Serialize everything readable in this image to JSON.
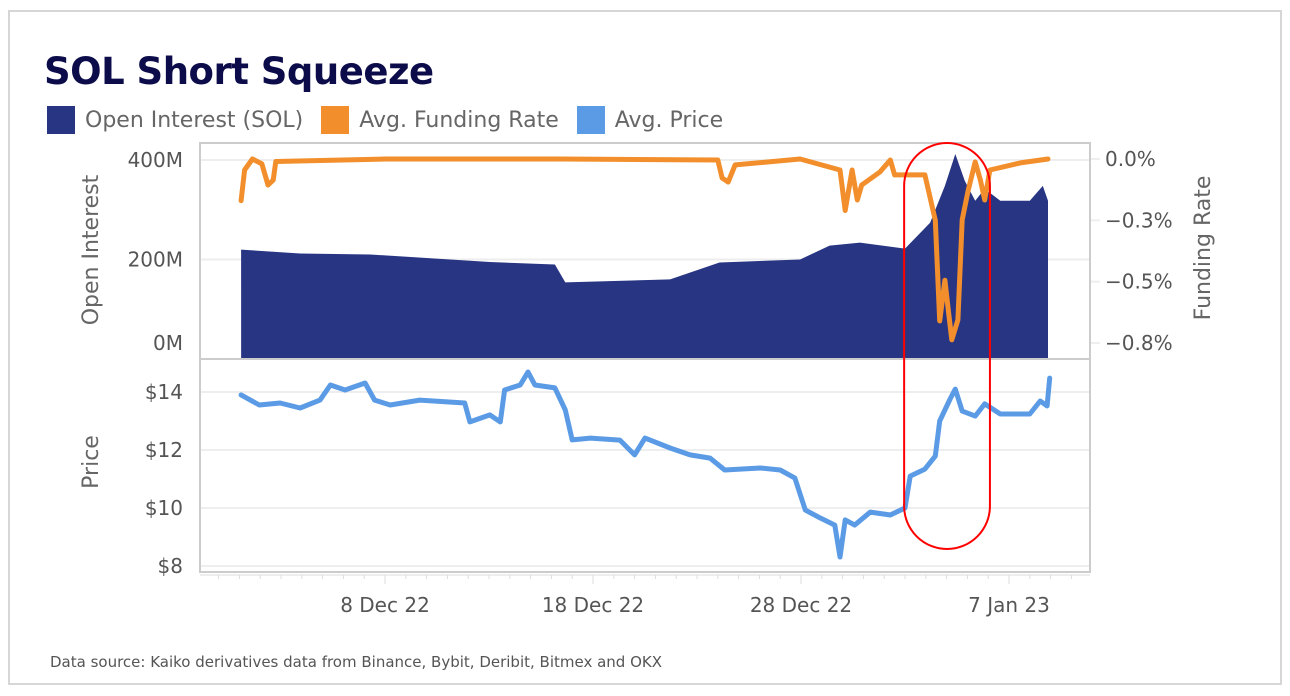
{
  "chart_data": [
    {
      "type": "area+line",
      "title": "SOL Short Squeeze",
      "legend": {
        "placement": "top-left",
        "entries": [
          {
            "name": "Open Interest (SOL)",
            "color": "#283583"
          },
          {
            "name": "Avg. Funding Rate",
            "color": "#f28f2c"
          },
          {
            "name": "Avg. Price",
            "color": "#5b9be6"
          }
        ]
      },
      "ylabel_left": "Open Interest",
      "ylabel_right": "Funding Rate",
      "ylim_left": [
        0,
        400
      ],
      "yticks_left": [
        {
          "value": 400,
          "label": "400M"
        },
        {
          "value": 200,
          "label": "200M"
        },
        {
          "value": 0,
          "label": "0M"
        }
      ],
      "ylim_right": [
        -0.75,
        0
      ],
      "yticks_right": [
        {
          "value": 0,
          "label": "0.0%"
        },
        {
          "value": -0.25,
          "label": "−0.3%"
        },
        {
          "value": -0.5,
          "label": "−0.5%"
        },
        {
          "value": -0.75,
          "label": "−0.8%"
        }
      ],
      "grid": true,
      "series": [
        {
          "name": "Open Interest (SOL)",
          "kind": "area",
          "axis": "left",
          "unit": "M",
          "points": [
            [
              "2022-12-01 02:00",
              220
            ],
            [
              "2022-12-03 22:00",
              212
            ],
            [
              "2022-12-07 07:00",
              210
            ],
            [
              "2022-12-13 01:00",
              195
            ],
            [
              "2022-12-16 04:00",
              190
            ],
            [
              "2022-12-16 16:00",
              154
            ],
            [
              "2022-12-21 17:00",
              160
            ],
            [
              "2022-12-24 02:00",
              194
            ],
            [
              "2022-12-27 23:00",
              200
            ],
            [
              "2022-12-29 09:00",
              228
            ],
            [
              "2022-12-30 20:00",
              234
            ],
            [
              "2023-01-02 00:00",
              222
            ],
            [
              "2023-01-03 05:00",
              274
            ],
            [
              "2023-01-03 22:00",
              348
            ],
            [
              "2023-01-04 10:00",
              412
            ],
            [
              "2023-01-04 21:00",
              358
            ],
            [
              "2023-01-05 09:00",
              318
            ],
            [
              "2023-01-05 20:00",
              342
            ],
            [
              "2023-01-06 14:00",
              318
            ],
            [
              "2023-01-08 00:00",
              318
            ],
            [
              "2023-01-08 15:00",
              348
            ],
            [
              "2023-01-08 21:00",
              318
            ]
          ]
        },
        {
          "name": "Avg. Funding Rate",
          "kind": "line",
          "axis": "right",
          "unit": "%",
          "points": [
            [
              "2022-12-01 02:00",
              -0.17
            ],
            [
              "2022-12-01 06:00",
              -0.045
            ],
            [
              "2022-12-01 15:00",
              0.0
            ],
            [
              "2022-12-02 02:00",
              -0.02
            ],
            [
              "2022-12-02 09:00",
              -0.106
            ],
            [
              "2022-12-02 15:00",
              -0.086
            ],
            [
              "2022-12-02 18:00",
              -0.01
            ],
            [
              "2022-12-08 00:00",
              0.0
            ],
            [
              "2022-12-16 10:00",
              0.0
            ],
            [
              "2022-12-24 00:00",
              -0.004
            ],
            [
              "2022-12-24 05:00",
              -0.077
            ],
            [
              "2022-12-24 12:00",
              -0.094
            ],
            [
              "2022-12-24 20:00",
              -0.024
            ],
            [
              "2022-12-27 23:00",
              0.0
            ],
            [
              "2022-12-29 21:00",
              -0.045
            ],
            [
              "2022-12-30 03:00",
              -0.21
            ],
            [
              "2022-12-30 11:00",
              -0.045
            ],
            [
              "2022-12-30 17:00",
              -0.167
            ],
            [
              "2022-12-30 22:00",
              -0.106
            ],
            [
              "2022-12-31 19:00",
              -0.053
            ],
            [
              "2023-01-01 07:00",
              -0.004
            ],
            [
              "2023-01-01 12:00",
              -0.065
            ],
            [
              "2023-01-02 23:00",
              -0.065
            ],
            [
              "2023-01-03 11:00",
              -0.25
            ],
            [
              "2023-01-03 16:00",
              -0.66
            ],
            [
              "2023-01-03 22:00",
              -0.494
            ],
            [
              "2023-01-04 02:00",
              -0.616
            ],
            [
              "2023-01-04 06:00",
              -0.737
            ],
            [
              "2023-01-04 13:00",
              -0.656
            ],
            [
              "2023-01-04 18:00",
              -0.248
            ],
            [
              "2023-01-05 01:00",
              -0.126
            ],
            [
              "2023-01-05 09:00",
              -0.012
            ],
            [
              "2023-01-05 15:00",
              -0.086
            ],
            [
              "2023-01-05 20:00",
              -0.167
            ],
            [
              "2023-01-06 02:00",
              -0.045
            ],
            [
              "2023-01-07 13:00",
              -0.016
            ],
            [
              "2023-01-08 21:00",
              0.0
            ]
          ]
        }
      ]
    },
    {
      "type": "line",
      "ylabel": "Price",
      "ylim": [
        7.9,
        14.9
      ],
      "yticks": [
        {
          "value": 14,
          "label": "$14"
        },
        {
          "value": 12,
          "label": "$12"
        },
        {
          "value": 10,
          "label": "$10"
        },
        {
          "value": 8,
          "label": "$8"
        }
      ],
      "grid": true,
      "xticks": [
        {
          "value": "2022-12-08",
          "label": "8 Dec 22"
        },
        {
          "value": "2022-12-18",
          "label": "18 Dec 22"
        },
        {
          "value": "2022-12-28",
          "label": "28 Dec 22"
        },
        {
          "value": "2023-01-07",
          "label": "7 Jan 23"
        }
      ],
      "series": [
        {
          "name": "Avg. Price",
          "kind": "line",
          "unit": "$",
          "points": [
            [
              "2022-12-01 02:00",
              13.9
            ],
            [
              "2022-12-01 23:00",
              13.55
            ],
            [
              "2022-12-02 23:00",
              13.62
            ],
            [
              "2022-12-03 22:00",
              13.45
            ],
            [
              "2022-12-04 21:00",
              13.72
            ],
            [
              "2022-12-05 09:00",
              14.24
            ],
            [
              "2022-12-06 02:00",
              14.07
            ],
            [
              "2022-12-07 01:00",
              14.31
            ],
            [
              "2022-12-07 12:00",
              13.72
            ],
            [
              "2022-12-08 06:00",
              13.55
            ],
            [
              "2022-12-09 16:00",
              13.72
            ],
            [
              "2022-12-11 20:00",
              13.62
            ],
            [
              "2022-12-12 02:00",
              12.97
            ],
            [
              "2022-12-13 01:00",
              13.21
            ],
            [
              "2022-12-13 13:00",
              12.97
            ],
            [
              "2022-12-13 18:00",
              14.07
            ],
            [
              "2022-12-14 12:00",
              14.24
            ],
            [
              "2022-12-14 21:00",
              14.69
            ],
            [
              "2022-12-15 05:00",
              14.24
            ],
            [
              "2022-12-16 04:00",
              14.14
            ],
            [
              "2022-12-16 16:00",
              13.38
            ],
            [
              "2022-12-17 00:00",
              12.35
            ],
            [
              "2022-12-17 21:00",
              12.41
            ],
            [
              "2022-12-19 07:00",
              12.34
            ],
            [
              "2022-12-20 00:00",
              11.83
            ],
            [
              "2022-12-20 12:00",
              12.41
            ],
            [
              "2022-12-21 17:00",
              12.07
            ],
            [
              "2022-12-22 16:00",
              11.83
            ],
            [
              "2022-12-23 15:00",
              11.72
            ],
            [
              "2022-12-24 08:00",
              11.31
            ],
            [
              "2022-12-26 01:00",
              11.38
            ],
            [
              "2022-12-27 00:00",
              11.31
            ],
            [
              "2022-12-27 17:00",
              11.03
            ],
            [
              "2022-12-28 05:00",
              9.93
            ],
            [
              "2022-12-28 22:00",
              9.66
            ],
            [
              "2022-12-29 15:00",
              9.41
            ],
            [
              "2022-12-29 21:00",
              8.31
            ],
            [
              "2022-12-30 03:00",
              9.59
            ],
            [
              "2022-12-30 14:00",
              9.41
            ],
            [
              "2022-12-31 08:00",
              9.86
            ],
            [
              "2023-01-01 07:00",
              9.76
            ],
            [
              "2023-01-02 00:00",
              10.0
            ],
            [
              "2023-01-02 06:00",
              11.1
            ],
            [
              "2023-01-02 23:00",
              11.34
            ],
            [
              "2023-01-03 11:00",
              11.79
            ],
            [
              "2023-01-03 16:00",
              13.0
            ],
            [
              "2023-01-04 04:00",
              13.76
            ],
            [
              "2023-01-04 10:00",
              14.1
            ],
            [
              "2023-01-04 18:00",
              13.34
            ],
            [
              "2023-01-05 09:00",
              13.17
            ],
            [
              "2023-01-05 20:00",
              13.59
            ],
            [
              "2023-01-06 14:00",
              13.24
            ],
            [
              "2023-01-08 00:00",
              13.24
            ],
            [
              "2023-01-08 12:00",
              13.69
            ],
            [
              "2023-01-08 20:00",
              13.52
            ],
            [
              "2023-01-08 23:00",
              14.48
            ]
          ]
        }
      ]
    }
  ],
  "annotation": {
    "shape": "rounded-outline",
    "color": "#ff0000",
    "x_start": "2023-01-01 23:00",
    "x_end": "2023-01-06 02:00"
  },
  "footer": {
    "source": "Data source: Kaiko derivatives data from Binance, Bybit, Deribit, Bitmex and OKX"
  }
}
